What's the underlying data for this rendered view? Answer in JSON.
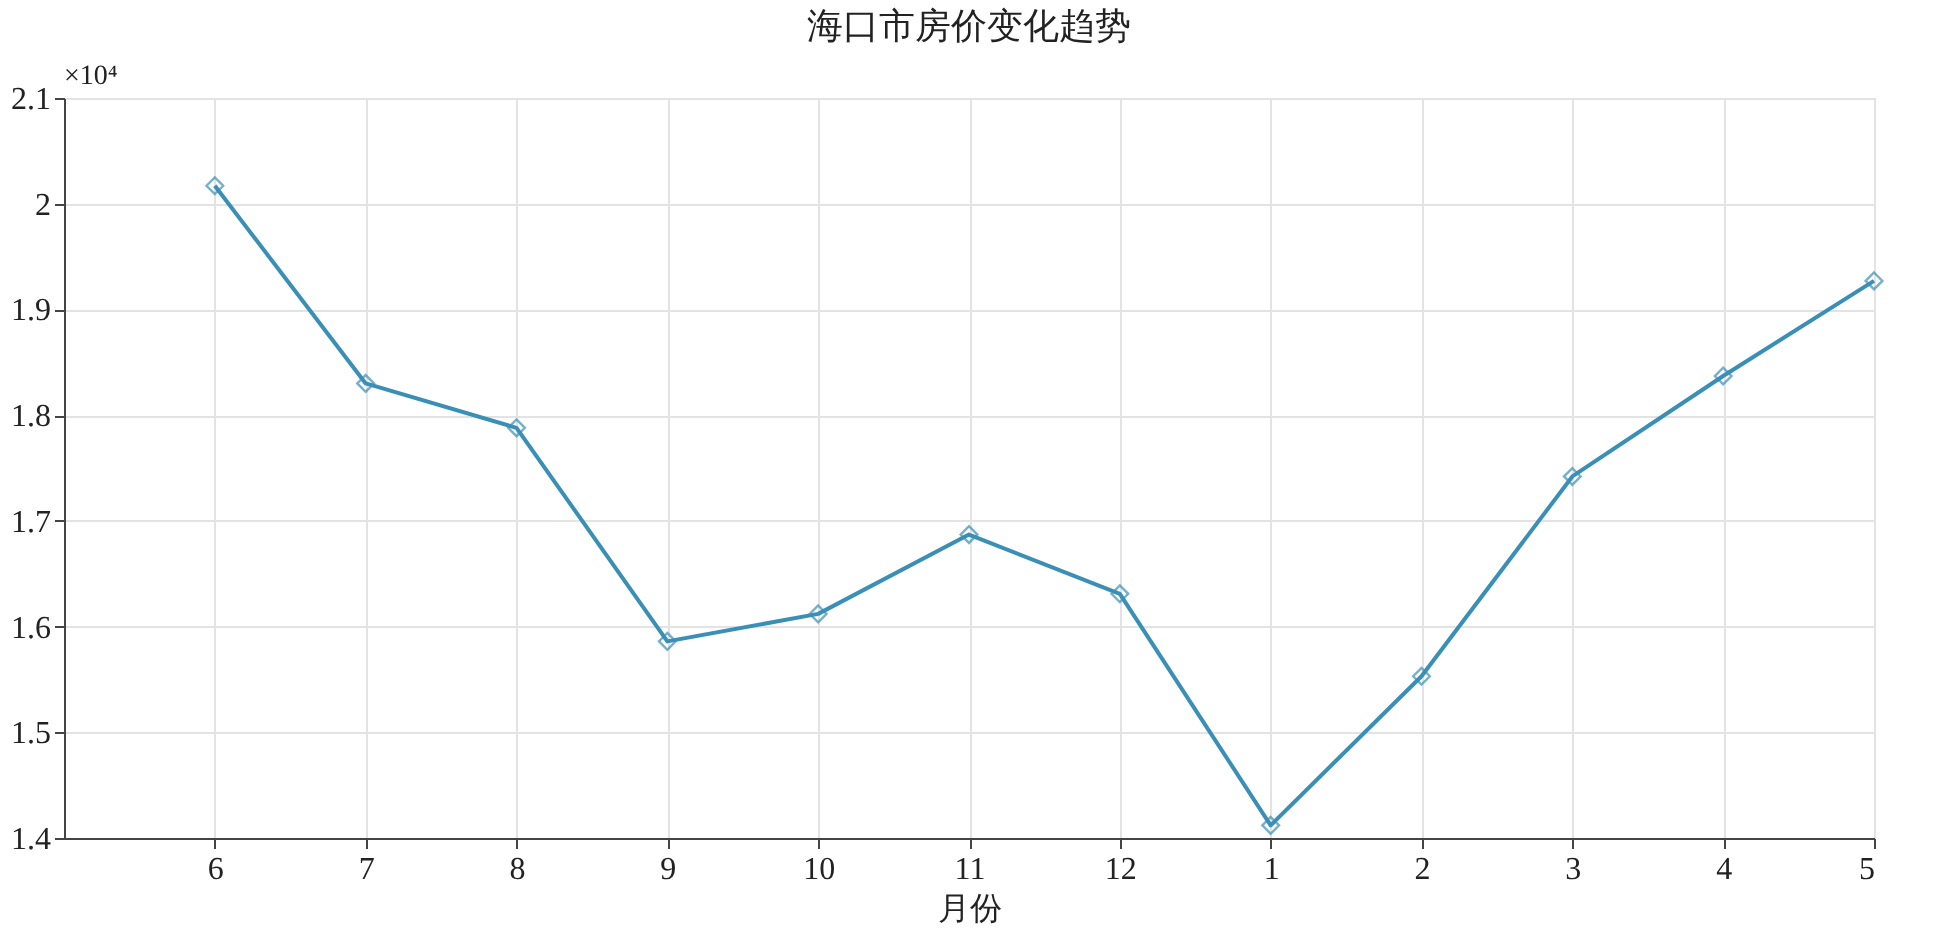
{
  "chart_data": {
    "type": "line",
    "title": "海口市房价变化趋势",
    "xlabel": "月份",
    "categories": [
      "6",
      "7",
      "8",
      "9",
      "10",
      "11",
      "12",
      "1",
      "2",
      "3",
      "4",
      "5"
    ],
    "series": [
      {
        "color": "#3a8fb7",
        "values": [
          2.017,
          1.83,
          1.788,
          1.586,
          1.612,
          1.687,
          1.631,
          1.412,
          1.553,
          1.742,
          1.837,
          1.927
        ]
      }
    ],
    "ylim": [
      1.4,
      2.1
    ],
    "yticks": [
      1.4,
      1.5,
      1.6,
      1.7,
      1.8,
      1.9,
      2,
      2.1
    ],
    "grid": true,
    "marker": "diamond",
    "line_style": "solid",
    "annotations": [
      "×10⁴"
    ]
  }
}
